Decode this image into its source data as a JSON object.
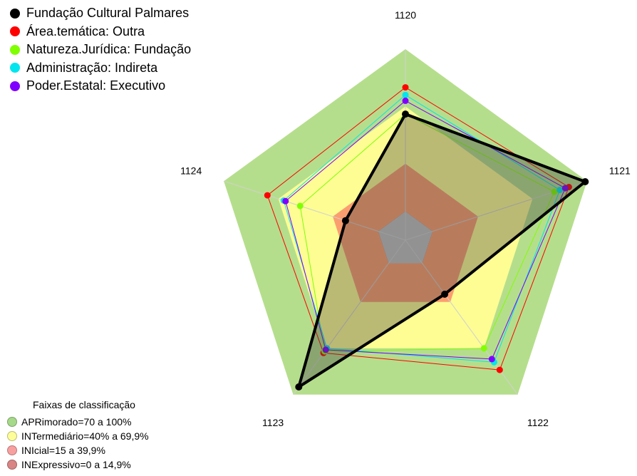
{
  "chart_data": {
    "type": "radar",
    "axes": [
      "1120",
      "1121",
      "1122",
      "1123",
      "1124"
    ],
    "rmax": 100,
    "bands": [
      {
        "label": "APRimorado=70 a 100%",
        "from": 70,
        "to": 100,
        "color": "#b5de8c",
        "swatch": "#a6d98a"
      },
      {
        "label": "INTermediário=40% a 69,9%",
        "from": 40,
        "to": 69.9,
        "color": "#fdfd94",
        "swatch": "#fdfd9a"
      },
      {
        "label": "INIcial=15 a 39,9%",
        "from": 15,
        "to": 39.9,
        "color": "#fb9e6f",
        "swatch": "#f8a0a0"
      },
      {
        "label": "INExpressivo=0 a 14,9%",
        "from": 0,
        "to": 14.9,
        "color": "#ae3d2c",
        "swatch": "#d98585"
      }
    ],
    "bands_title": "Faixas de classificação",
    "series": [
      {
        "name": "Fundação Cultural Palmares",
        "color": "#000000",
        "values": [
          66,
          99,
          35,
          95,
          33
        ]
      },
      {
        "name": "Área.temática: Outra",
        "color": "#ff0000",
        "values": [
          80,
          90,
          84,
          73,
          76
        ]
      },
      {
        "name": "Natureza.Jurídica: Fundação",
        "color": "#80ff00",
        "values": [
          66,
          82,
          70,
          72,
          58
        ]
      },
      {
        "name": "Administração: Indireta",
        "color": "#00e5ee",
        "values": [
          76,
          85,
          79,
          70,
          67
        ]
      },
      {
        "name": "Poder.Estatal: Executivo",
        "color": "#8000ff",
        "values": [
          73,
          88,
          77,
          71,
          66
        ]
      }
    ]
  }
}
